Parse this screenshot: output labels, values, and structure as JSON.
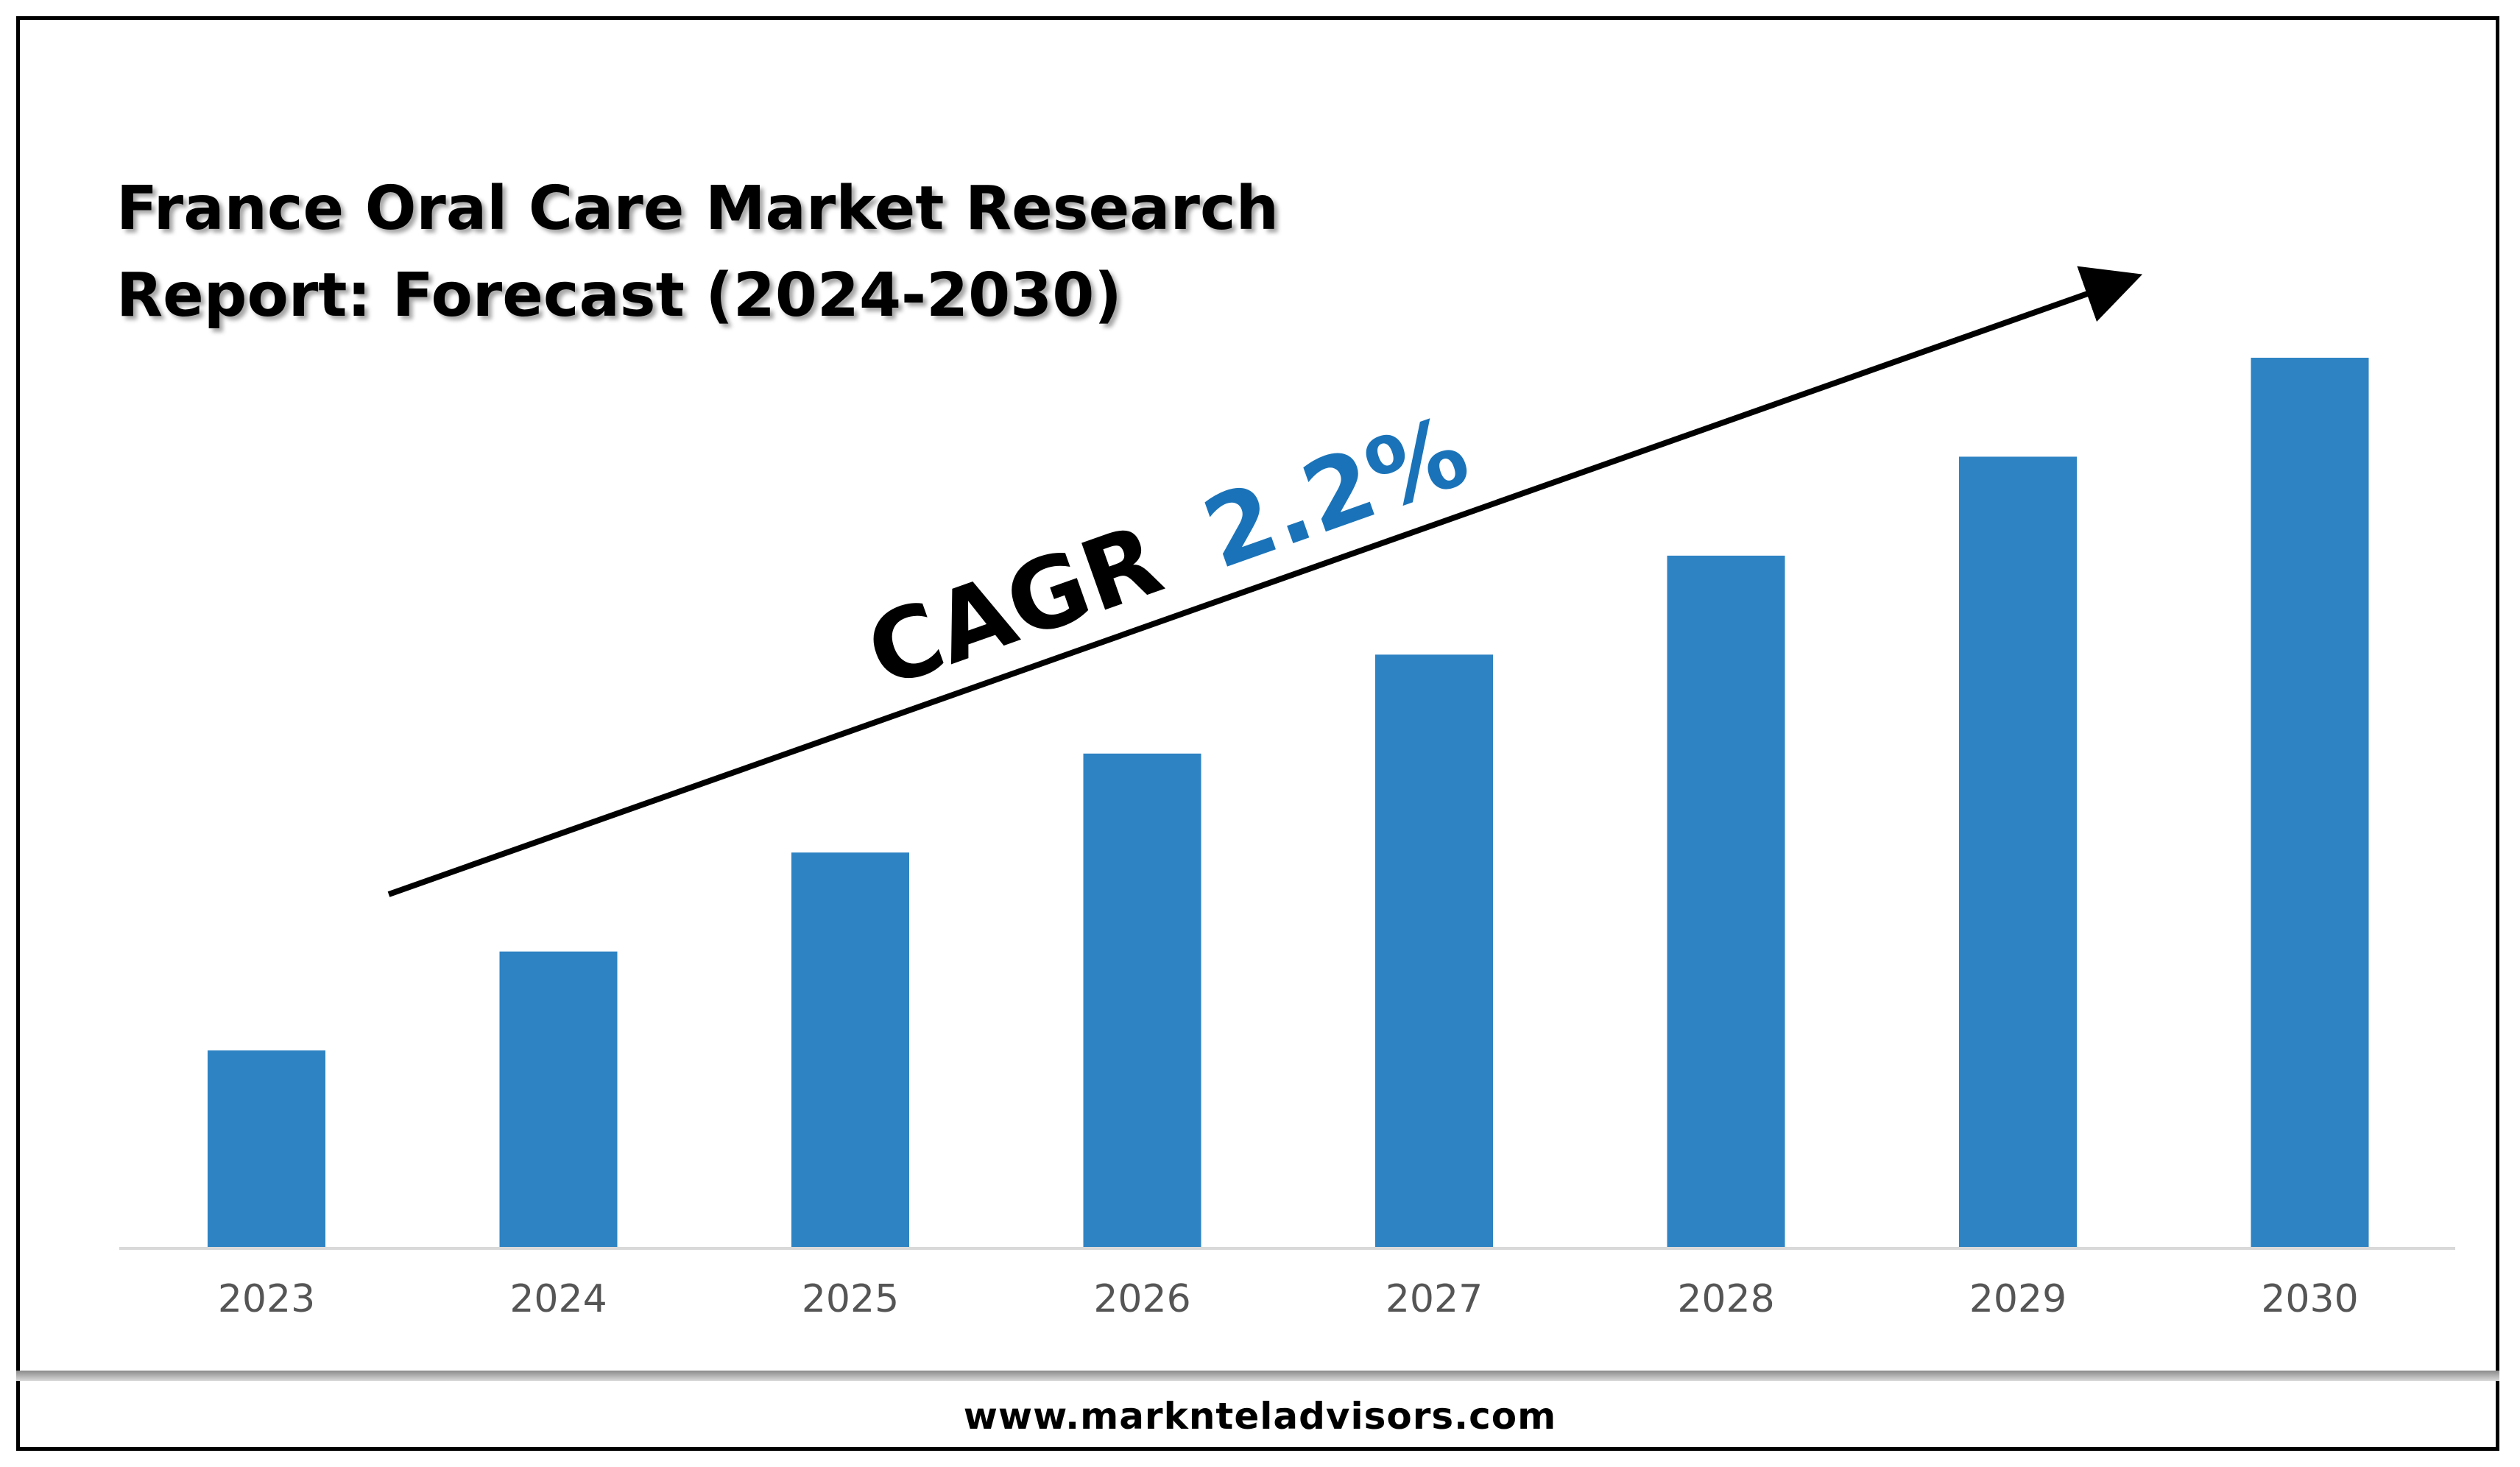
{
  "title_lines": [
    "France Oral Care Market Research",
    "Report: Forecast (2024-2030)"
  ],
  "cagr": {
    "label": "CAGR",
    "value": "2.2%"
  },
  "footer": {
    "url": "www.marknteladvisors.com"
  },
  "colors": {
    "bar": "#2e83c3",
    "cagr_value": "#1a73b8",
    "axis": "#d9d9d9",
    "tick_text": "#555555"
  },
  "chart_data": {
    "type": "bar",
    "categories": [
      "2023",
      "2024",
      "2025",
      "2026",
      "2027",
      "2028",
      "2029",
      "2030"
    ],
    "values": [
      2,
      3,
      4,
      5,
      6,
      7,
      8,
      9
    ],
    "ylim": [
      0,
      9
    ],
    "grid": false,
    "trend_arrow": true
  }
}
